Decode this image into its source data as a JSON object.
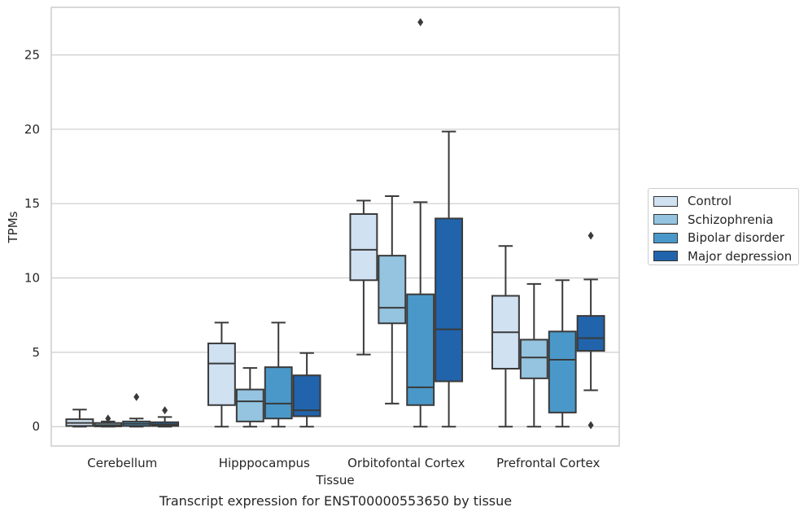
{
  "caption": "Transcript expression for ENST00000553650 by tissue",
  "chart_data": {
    "type": "box",
    "xlabel": "Tissue",
    "ylabel": "TPMs",
    "ylim": [
      -1.3,
      28.2
    ],
    "yticks": [
      0,
      5,
      10,
      15,
      20,
      25
    ],
    "grid": true,
    "legend_position": "right-center",
    "categories": [
      "Cerebellum",
      "Hipppocampus",
      "Orbitofontal Cortex",
      "Prefrontal Cortex"
    ],
    "series": [
      {
        "name": "Control",
        "color": "#d0e1f2",
        "boxes": [
          {
            "whisker_low": 0.0,
            "q1": 0.05,
            "median": 0.25,
            "q3": 0.5,
            "whisker_high": 1.15,
            "outliers": []
          },
          {
            "whisker_low": 0.0,
            "q1": 1.45,
            "median": 4.25,
            "q3": 5.6,
            "whisker_high": 7.0,
            "outliers": []
          },
          {
            "whisker_low": 4.85,
            "q1": 9.85,
            "median": 11.9,
            "q3": 14.3,
            "whisker_high": 15.2,
            "outliers": []
          },
          {
            "whisker_low": 0.0,
            "q1": 3.9,
            "median": 6.35,
            "q3": 8.8,
            "whisker_high": 12.15,
            "outliers": []
          }
        ]
      },
      {
        "name": "Schizophrenia",
        "color": "#94c4df",
        "boxes": [
          {
            "whisker_low": 0.0,
            "q1": 0.02,
            "median": 0.1,
            "q3": 0.25,
            "whisker_high": 0.35,
            "outliers": [
              0.55
            ]
          },
          {
            "whisker_low": 0.0,
            "q1": 0.35,
            "median": 1.7,
            "q3": 2.5,
            "whisker_high": 3.95,
            "outliers": []
          },
          {
            "whisker_low": 1.55,
            "q1": 6.95,
            "median": 8.0,
            "q3": 11.5,
            "whisker_high": 15.5,
            "outliers": []
          },
          {
            "whisker_low": 0.0,
            "q1": 3.25,
            "median": 4.65,
            "q3": 5.85,
            "whisker_high": 9.6,
            "outliers": []
          }
        ]
      },
      {
        "name": "Bipolar disorder",
        "color": "#4a98c9",
        "boxes": [
          {
            "whisker_low": 0.0,
            "q1": 0.05,
            "median": 0.2,
            "q3": 0.35,
            "whisker_high": 0.55,
            "outliers": [
              2.0
            ]
          },
          {
            "whisker_low": 0.0,
            "q1": 0.55,
            "median": 1.55,
            "q3": 4.0,
            "whisker_high": 7.0,
            "outliers": []
          },
          {
            "whisker_low": 0.0,
            "q1": 1.45,
            "median": 2.65,
            "q3": 8.9,
            "whisker_high": 15.1,
            "outliers": [
              27.2
            ]
          },
          {
            "whisker_low": 0.0,
            "q1": 0.95,
            "median": 4.5,
            "q3": 6.4,
            "whisker_high": 9.85,
            "outliers": []
          }
        ]
      },
      {
        "name": "Major depression",
        "color": "#2164ab",
        "boxes": [
          {
            "whisker_low": 0.0,
            "q1": 0.05,
            "median": 0.15,
            "q3": 0.3,
            "whisker_high": 0.65,
            "outliers": [
              1.1
            ]
          },
          {
            "whisker_low": 0.0,
            "q1": 0.7,
            "median": 1.1,
            "q3": 3.45,
            "whisker_high": 4.95,
            "outliers": []
          },
          {
            "whisker_low": 0.0,
            "q1": 3.05,
            "median": 6.55,
            "q3": 14.0,
            "whisker_high": 19.85,
            "outliers": []
          },
          {
            "whisker_low": 2.45,
            "q1": 5.1,
            "median": 5.95,
            "q3": 7.45,
            "whisker_high": 9.9,
            "outliers": [
              12.85,
              0.1
            ]
          }
        ]
      }
    ]
  }
}
